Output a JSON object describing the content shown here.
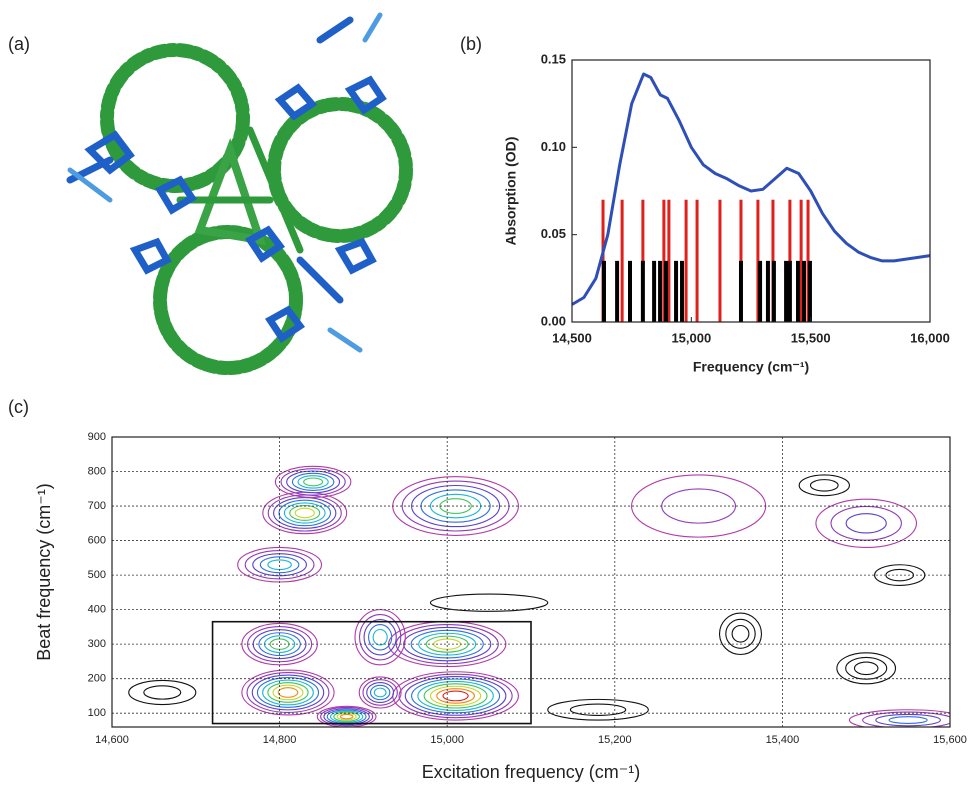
{
  "figure": {
    "panel_a_label": "(a)"
  },
  "chart_data": [
    {
      "type": "line",
      "panel_label": "(b)",
      "xlabel": "Frequency (cm⁻¹)",
      "ylabel": "Absorption (OD)",
      "xlim": [
        14500,
        16000
      ],
      "ylim": [
        0,
        0.15
      ],
      "xticks": [
        {
          "value": 14500,
          "label": "14,500"
        },
        {
          "value": 15000,
          "label": "15,000"
        },
        {
          "value": 15500,
          "label": "15,500"
        },
        {
          "value": 16000,
          "label": "16,000"
        }
      ],
      "yticks": [
        {
          "value": 0,
          "label": "0.00"
        },
        0.05,
        {
          "value": 0.1,
          "label": "0.10"
        },
        0.15
      ],
      "series": [
        {
          "kind": "line",
          "color": "#2f4fb8",
          "x": [
            14500,
            14550,
            14600,
            14650,
            14700,
            14750,
            14800,
            14830,
            14870,
            14900,
            14950,
            15000,
            15050,
            15100,
            15150,
            15200,
            15250,
            15300,
            15350,
            15400,
            15450,
            15500,
            15550,
            15600,
            15650,
            15700,
            15750,
            15800,
            15850,
            15900,
            15950,
            16000
          ],
          "values": [
            0.01,
            0.014,
            0.025,
            0.05,
            0.09,
            0.125,
            0.142,
            0.14,
            0.13,
            0.128,
            0.115,
            0.1,
            0.09,
            0.085,
            0.082,
            0.078,
            0.075,
            0.076,
            0.082,
            0.088,
            0.085,
            0.075,
            0.062,
            0.052,
            0.045,
            0.04,
            0.037,
            0.035,
            0.035,
            0.036,
            0.037,
            0.038
          ]
        },
        {
          "kind": "stick",
          "color": "#e0201b",
          "x": [
            14630,
            14710,
            14797,
            14885,
            14906,
            14978,
            15024,
            15120,
            15208,
            15279,
            15342,
            15413,
            15460,
            15489
          ],
          "values": [
            0.07,
            0.07,
            0.07,
            0.07,
            0.07,
            0.07,
            0.07,
            0.07,
            0.07,
            0.07,
            0.07,
            0.07,
            0.07,
            0.07
          ]
        },
        {
          "kind": "stick",
          "color": "#000000",
          "x": [
            14634,
            14689,
            14743,
            14797,
            14844,
            14869,
            14894,
            14936,
            14961,
            15208,
            15288,
            15321,
            15346,
            15397,
            15413,
            15447,
            15472,
            15497
          ],
          "values": [
            0.035,
            0.035,
            0.035,
            0.035,
            0.035,
            0.035,
            0.035,
            0.035,
            0.035,
            0.035,
            0.035,
            0.035,
            0.035,
            0.035,
            0.035,
            0.035,
            0.035,
            0.035
          ]
        }
      ]
    },
    {
      "type": "contour",
      "panel_label": "(c)",
      "xlabel": "Excitation frequency (cm⁻¹)",
      "ylabel": "Beat frequency (cm⁻¹)",
      "xlim": [
        14600,
        15600
      ],
      "ylim": [
        60,
        900
      ],
      "xticks": [
        {
          "value": 14600,
          "label": "14,600"
        },
        {
          "value": 14800,
          "label": "14,800"
        },
        {
          "value": 15000,
          "label": "15,000"
        },
        {
          "value": 15200,
          "label": "15,200"
        },
        {
          "value": 15400,
          "label": "15,400"
        },
        {
          "value": 15600,
          "label": "15,600"
        }
      ],
      "yticks": [
        100,
        200,
        300,
        400,
        500,
        600,
        700,
        800,
        900
      ],
      "grid": true,
      "level_colors": [
        "#b23aa8",
        "#8e3bb8",
        "#5b3fd0",
        "#2f6fe0",
        "#18b7d6",
        "#3fc45a",
        "#c8d62a",
        "#f08a1c",
        "#e0201b"
      ],
      "peaks": [
        {
          "x": 15010,
          "y": 150,
          "width": 150,
          "height": 140,
          "levels": 9
        },
        {
          "x": 14810,
          "y": 160,
          "width": 110,
          "height": 130,
          "levels": 8
        },
        {
          "x": 15000,
          "y": 300,
          "width": 140,
          "height": 130,
          "levels": 7
        },
        {
          "x": 14800,
          "y": 300,
          "width": 90,
          "height": 120,
          "levels": 6
        },
        {
          "x": 14920,
          "y": 320,
          "width": 60,
          "height": 160,
          "levels": 5
        },
        {
          "x": 15010,
          "y": 700,
          "width": 150,
          "height": 170,
          "levels": 6
        },
        {
          "x": 14830,
          "y": 680,
          "width": 100,
          "height": 120,
          "levels": 7
        },
        {
          "x": 14840,
          "y": 770,
          "width": 90,
          "height": 90,
          "levels": 6
        },
        {
          "x": 14800,
          "y": 530,
          "width": 100,
          "height": 100,
          "levels": 5
        },
        {
          "x": 14880,
          "y": 90,
          "width": 70,
          "height": 60,
          "levels": 8
        },
        {
          "x": 14920,
          "y": 160,
          "width": 50,
          "height": 90,
          "levels": 5
        },
        {
          "x": 15550,
          "y": 80,
          "width": 140,
          "height": 60,
          "levels": 4
        },
        {
          "x": 15500,
          "y": 650,
          "width": 120,
          "height": 140,
          "levels": 3
        },
        {
          "x": 15300,
          "y": 700,
          "width": 160,
          "height": 180,
          "levels": 2
        }
      ],
      "negative_color": "#111111",
      "negative_peaks": [
        {
          "x": 15350,
          "y": 330,
          "width": 50,
          "height": 120,
          "levels": 3
        },
        {
          "x": 15500,
          "y": 230,
          "width": 70,
          "height": 90,
          "levels": 3
        },
        {
          "x": 15540,
          "y": 500,
          "width": 60,
          "height": 60,
          "levels": 2
        },
        {
          "x": 15450,
          "y": 760,
          "width": 60,
          "height": 60,
          "levels": 2
        },
        {
          "x": 14660,
          "y": 160,
          "width": 80,
          "height": 70,
          "levels": 2
        },
        {
          "x": 15180,
          "y": 110,
          "width": 120,
          "height": 60,
          "levels": 2
        },
        {
          "x": 15050,
          "y": 420,
          "width": 140,
          "height": 50,
          "levels": 1
        }
      ],
      "highlight_box": {
        "x": [
          14720,
          15100
        ],
        "y": [
          70,
          365
        ]
      }
    }
  ]
}
